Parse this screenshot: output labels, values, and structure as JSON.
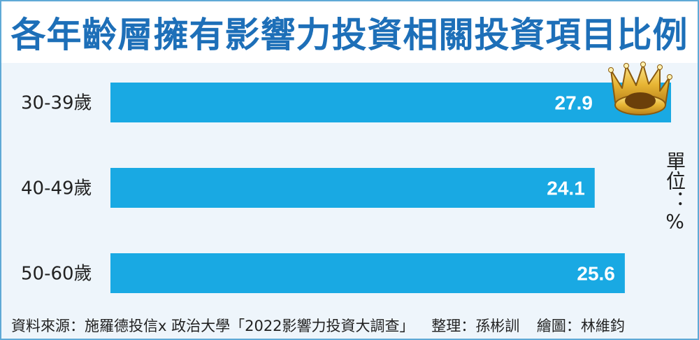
{
  "title": "各年齡層擁有影響力投資相關投資項目比例",
  "unit": "單位：%",
  "source": "資料來源：施羅德投信x 政治大學「2022影響力投資大調查」",
  "editor": "整理：孫彬訓",
  "illustrator": "繪圖：林維鈞",
  "colors": {
    "bar": "#19a9e3",
    "title": "#1d6fb8",
    "frame": "#5fa9d6",
    "crown": "#e7b534"
  },
  "icons": [
    "crown-icon"
  ],
  "chart_data": {
    "type": "bar",
    "orientation": "horizontal",
    "categories": [
      "30-39歲",
      "40-49歲",
      "50-60歲"
    ],
    "values": [
      27.9,
      24.1,
      25.6
    ],
    "title": "各年齡層擁有影響力投資相關投資項目比例",
    "unit": "%",
    "grid": false,
    "legend": "none"
  }
}
